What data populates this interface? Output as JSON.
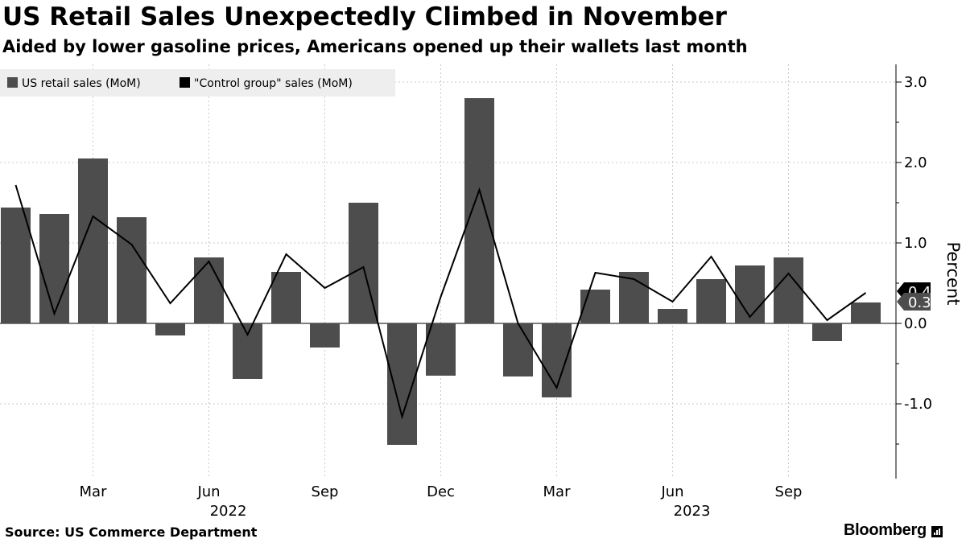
{
  "header": {
    "title": "US Retail Sales Unexpectedly Climbed in November",
    "subtitle": "Aided by lower gasoline prices, Americans opened up their wallets last month"
  },
  "footer": {
    "source": "Source: US Commerce Department",
    "brand": "Bloomberg"
  },
  "chart_data": {
    "type": "bar",
    "x": [
      "2022-01",
      "2022-02",
      "2022-03",
      "2022-04",
      "2022-05",
      "2022-06",
      "2022-07",
      "2022-08",
      "2022-09",
      "2022-10",
      "2022-11",
      "2022-12",
      "2023-01",
      "2023-02",
      "2023-03",
      "2023-04",
      "2023-05",
      "2023-06",
      "2023-07",
      "2023-08",
      "2023-09",
      "2023-10",
      "2023-11"
    ],
    "series": [
      {
        "name": "US retail sales (MoM)",
        "kind": "bar",
        "color": "#4d4d4d",
        "values": [
          1.44,
          1.36,
          2.05,
          1.32,
          -0.15,
          0.82,
          -0.69,
          0.64,
          -0.3,
          1.5,
          -1.51,
          -0.65,
          2.8,
          -0.66,
          -0.92,
          0.42,
          0.64,
          0.18,
          0.55,
          0.72,
          0.82,
          -0.22,
          0.26
        ]
      },
      {
        "name": "\"Control group\" sales (MoM)",
        "kind": "line",
        "color": "#000000",
        "values": [
          1.72,
          0.12,
          1.33,
          0.98,
          0.25,
          0.77,
          -0.14,
          0.86,
          0.44,
          0.7,
          -1.16,
          0.33,
          1.66,
          0.0,
          -0.8,
          0.63,
          0.55,
          0.27,
          0.83,
          0.08,
          0.62,
          0.04,
          0.38
        ]
      }
    ],
    "x_tick_labels": [
      {
        "at": "2022-03",
        "label": "Mar"
      },
      {
        "at": "2022-06",
        "label": "Jun"
      },
      {
        "at": "2022-09",
        "label": "Sep"
      },
      {
        "at": "2022-12",
        "label": "Dec"
      },
      {
        "at": "2023-03",
        "label": "Mar"
      },
      {
        "at": "2023-06",
        "label": "Jun"
      },
      {
        "at": "2023-09",
        "label": "Sep"
      }
    ],
    "year_labels": [
      {
        "at": "2022-06",
        "label": "2022"
      },
      {
        "at": "2023-06",
        "label": "2023"
      }
    ],
    "y_ticks": [
      {
        "value": 3.0,
        "label": "3.0"
      },
      {
        "value": 2.0,
        "label": "2.0"
      },
      {
        "value": 1.0,
        "label": "1.0"
      },
      {
        "value": 0.0,
        "label": "0.0"
      },
      {
        "value": -1.0,
        "label": "-1.0"
      }
    ],
    "ylabel": "Percent",
    "ylim": [
      -1.9,
      3.2
    ],
    "y_axis_side": "right",
    "grid": true,
    "legend_position": "top-left",
    "last_value_labels": [
      {
        "series": 1,
        "label": "0.4",
        "color": "#000000"
      },
      {
        "series": 0,
        "label": "0.3",
        "color": "#4d4d4d"
      }
    ]
  }
}
